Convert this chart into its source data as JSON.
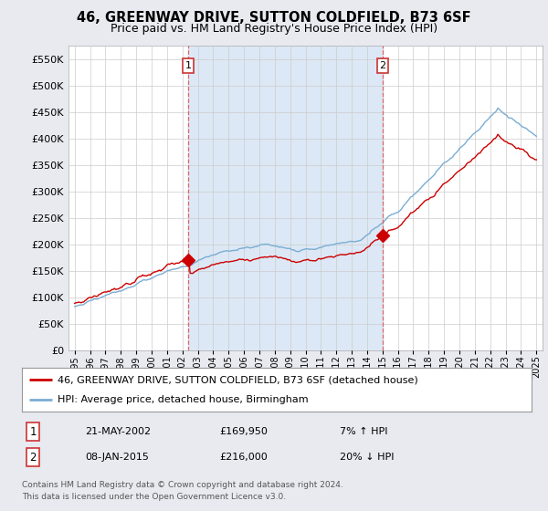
{
  "title": "46, GREENWAY DRIVE, SUTTON COLDFIELD, B73 6SF",
  "subtitle": "Price paid vs. HM Land Registry's House Price Index (HPI)",
  "legend_line1": "46, GREENWAY DRIVE, SUTTON COLDFIELD, B73 6SF (detached house)",
  "legend_line2": "HPI: Average price, detached house, Birmingham",
  "footer1": "Contains HM Land Registry data © Crown copyright and database right 2024.",
  "footer2": "This data is licensed under the Open Government Licence v3.0.",
  "annotation1_num": "1",
  "annotation1_date": "21-MAY-2002",
  "annotation1_price": "£169,950",
  "annotation1_hpi": "7% ↑ HPI",
  "annotation2_num": "2",
  "annotation2_date": "08-JAN-2015",
  "annotation2_price": "£216,000",
  "annotation2_hpi": "20% ↓ HPI",
  "vline1_x": 2002.38,
  "vline2_x": 2015.02,
  "marker1_x": 2002.38,
  "marker1_y": 169950,
  "marker2_x": 2015.02,
  "marker2_y": 216000,
  "ylim": [
    0,
    575000
  ],
  "yticks": [
    0,
    50000,
    100000,
    150000,
    200000,
    250000,
    300000,
    350000,
    400000,
    450000,
    500000,
    550000
  ],
  "xlim_left": 1994.6,
  "xlim_right": 2025.4,
  "red_color": "#cc0000",
  "blue_color": "#7aadd4",
  "shade_color": "#dce8f5",
  "background_color": "#e8eaf0",
  "plot_bg_color": "#ffffff",
  "vline_color": "#dd6666"
}
